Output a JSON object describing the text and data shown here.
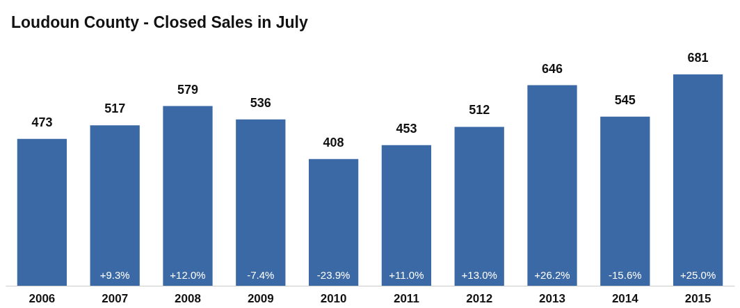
{
  "chart_data": {
    "type": "bar",
    "title": "Loudoun County - Closed Sales in July",
    "categories": [
      "2006",
      "2007",
      "2008",
      "2009",
      "2010",
      "2011",
      "2012",
      "2013",
      "2014",
      "2015"
    ],
    "values": [
      473,
      517,
      579,
      536,
      408,
      453,
      512,
      646,
      545,
      681
    ],
    "color": "#3b69a5",
    "data_labels": true,
    "annotations": [
      "+9.3%",
      "+12.0%",
      "-7.4%",
      "-23.9%",
      "+11.0%",
      "+13.0%",
      "+26.2%",
      "-15.6%",
      "+25.0%"
    ]
  }
}
